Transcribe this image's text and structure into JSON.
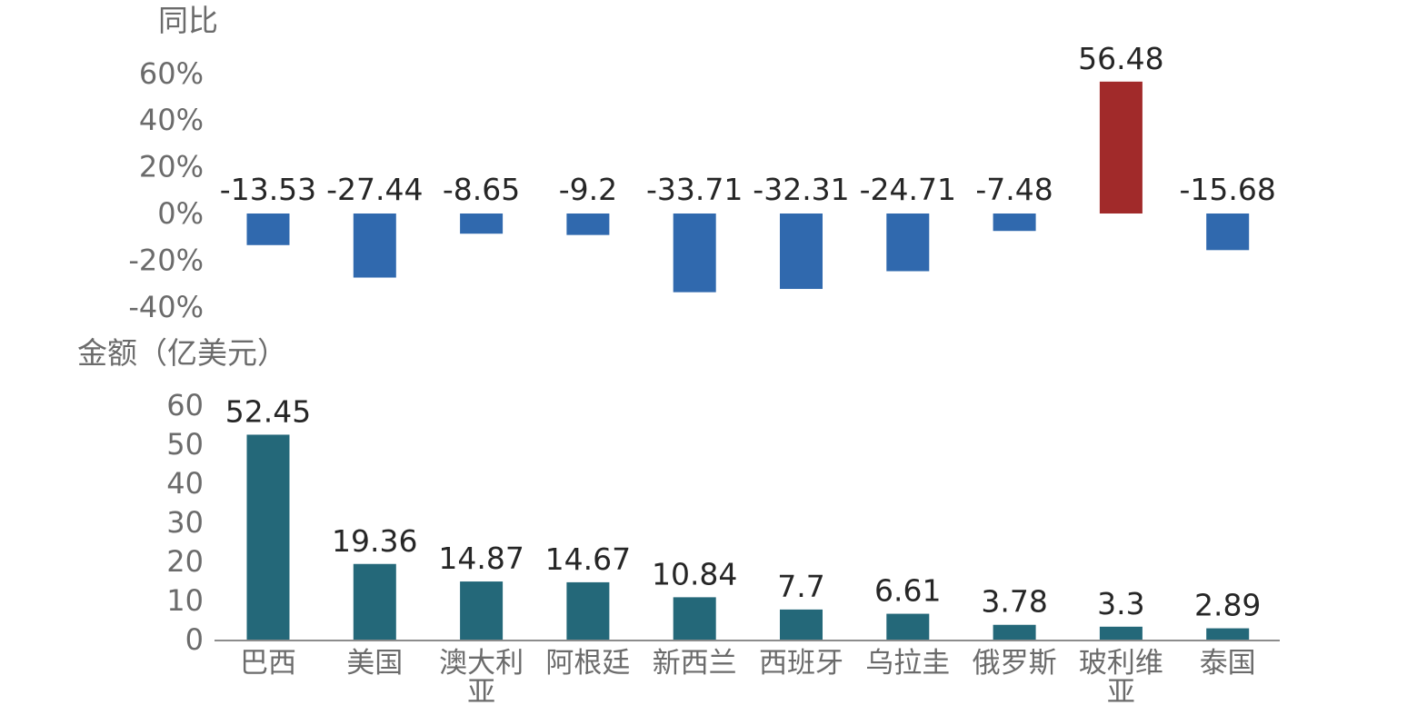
{
  "chart_data": [
    {
      "type": "bar",
      "ylabel": "同比",
      "categories": [
        "巴西",
        "美国",
        "澳大利亚",
        "阿根廷",
        "新西兰",
        "西班牙",
        "乌拉圭",
        "俄罗斯",
        "玻利维亚",
        "泰国"
      ],
      "values": [
        -13.53,
        -27.44,
        -8.65,
        -9.2,
        -33.71,
        -32.31,
        -24.71,
        -7.48,
        56.48,
        -15.68
      ],
      "value_labels": [
        "-13.53",
        "-27.44",
        "-8.65",
        "-9.2",
        "-33.71",
        "-32.31",
        "-24.71",
        "-7.48",
        "56.48",
        "-15.68"
      ],
      "yticks": [
        "60%",
        "40%",
        "20%",
        "0%",
        "-20%",
        "-40%"
      ],
      "ylim": [
        -40,
        60
      ],
      "colors": {
        "negative": "#3069ae",
        "positive": "#a12a2a"
      },
      "grid": false
    },
    {
      "type": "bar",
      "ylabel": "金额（亿美元）",
      "categories": [
        "巴西",
        "美国",
        "澳大利亚",
        "阿根廷",
        "新西兰",
        "西班牙",
        "乌拉圭",
        "俄罗斯",
        "玻利维亚",
        "泰国"
      ],
      "category_labels": [
        [
          "巴西"
        ],
        [
          "美国"
        ],
        [
          "澳大利",
          "亚"
        ],
        [
          "阿根廷"
        ],
        [
          "新西兰"
        ],
        [
          "西班牙"
        ],
        [
          "乌拉圭"
        ],
        [
          "俄罗斯"
        ],
        [
          "玻利维",
          "亚"
        ],
        [
          "泰国"
        ]
      ],
      "values": [
        52.45,
        19.36,
        14.87,
        14.67,
        10.84,
        7.7,
        6.61,
        3.78,
        3.3,
        2.89
      ],
      "value_labels": [
        "52.45",
        "19.36",
        "14.87",
        "14.67",
        "10.84",
        "7.7",
        "6.61",
        "3.78",
        "3.3",
        "2.89"
      ],
      "yticks": [
        "60",
        "50",
        "40",
        "30",
        "20",
        "10",
        "0"
      ],
      "ylim": [
        0,
        60
      ],
      "colors": {
        "bar": "#246879",
        "axis": "#8c8c8c"
      },
      "grid": false
    }
  ]
}
